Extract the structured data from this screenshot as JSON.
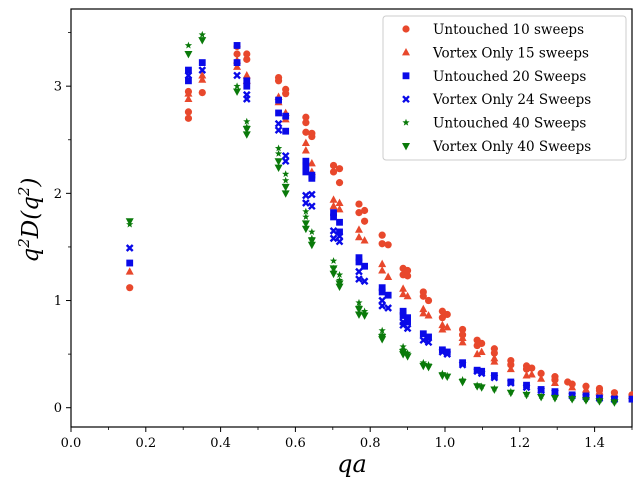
{
  "chart_data": {
    "type": "scatter",
    "title": "",
    "xlabel": "qa",
    "ylabel_parts": {
      "base": "q",
      "sup1": "2",
      "mid": "D(q",
      "sup2": "2",
      "end": ")"
    },
    "xlim": [
      0.0,
      1.5
    ],
    "ylim": [
      -0.18,
      3.72
    ],
    "xticks": [
      0.0,
      0.2,
      0.4,
      0.6,
      0.8,
      1.0,
      1.2,
      1.4
    ],
    "xtick_labels": [
      "0.0",
      "0.2",
      "0.4",
      "0.6",
      "0.8",
      "1.0",
      "1.2",
      "1.4"
    ],
    "yticks": [
      0,
      1,
      2,
      3
    ],
    "ytick_labels": [
      "0",
      "1",
      "2",
      "3"
    ],
    "grid": false,
    "legend_position": "top-right",
    "series": [
      {
        "name": "Untouched 10 sweeps",
        "marker": "circle",
        "color": "#e8482c",
        "points": [
          [
            0.157,
            1.12
          ],
          [
            0.314,
            2.7
          ],
          [
            0.314,
            2.76
          ],
          [
            0.314,
            2.95
          ],
          [
            0.351,
            2.94
          ],
          [
            0.444,
            3.3
          ],
          [
            0.444,
            3.37
          ],
          [
            0.47,
            3.25
          ],
          [
            0.47,
            3.3
          ],
          [
            0.555,
            3.05
          ],
          [
            0.555,
            3.08
          ],
          [
            0.574,
            2.93
          ],
          [
            0.574,
            2.97
          ],
          [
            0.628,
            2.57
          ],
          [
            0.628,
            2.66
          ],
          [
            0.628,
            2.71
          ],
          [
            0.644,
            2.53
          ],
          [
            0.644,
            2.56
          ],
          [
            0.702,
            2.2
          ],
          [
            0.702,
            2.26
          ],
          [
            0.718,
            2.1
          ],
          [
            0.718,
            2.23
          ],
          [
            0.77,
            1.82
          ],
          [
            0.77,
            1.9
          ],
          [
            0.785,
            1.74
          ],
          [
            0.785,
            1.84
          ],
          [
            0.832,
            1.53
          ],
          [
            0.832,
            1.61
          ],
          [
            0.848,
            1.52
          ],
          [
            0.888,
            1.24
          ],
          [
            0.888,
            1.3
          ],
          [
            0.9,
            1.23
          ],
          [
            0.9,
            1.28
          ],
          [
            0.942,
            1.04
          ],
          [
            0.942,
            1.08
          ],
          [
            0.956,
            1.0
          ],
          [
            0.993,
            0.84
          ],
          [
            0.993,
            0.9
          ],
          [
            1.006,
            0.87
          ],
          [
            1.047,
            0.68
          ],
          [
            1.047,
            0.73
          ],
          [
            1.086,
            0.58
          ],
          [
            1.086,
            0.63
          ],
          [
            1.098,
            0.6
          ],
          [
            1.132,
            0.51
          ],
          [
            1.132,
            0.55
          ],
          [
            1.176,
            0.4
          ],
          [
            1.176,
            0.44
          ],
          [
            1.218,
            0.36
          ],
          [
            1.218,
            0.39
          ],
          [
            1.232,
            0.37
          ],
          [
            1.257,
            0.32
          ],
          [
            1.294,
            0.26
          ],
          [
            1.294,
            0.29
          ],
          [
            1.328,
            0.24
          ],
          [
            1.34,
            0.22
          ],
          [
            1.377,
            0.2
          ],
          [
            1.413,
            0.16
          ],
          [
            1.413,
            0.18
          ],
          [
            1.453,
            0.14
          ],
          [
            1.5,
            0.12
          ]
        ]
      },
      {
        "name": "Vortex Only 15 sweeps",
        "marker": "triangle-up",
        "color": "#e8482c",
        "points": [
          [
            0.157,
            1.27
          ],
          [
            0.314,
            2.88
          ],
          [
            0.314,
            2.93
          ],
          [
            0.351,
            3.06
          ],
          [
            0.351,
            3.1
          ],
          [
            0.444,
            3.18
          ],
          [
            0.444,
            3.24
          ],
          [
            0.47,
            3.05
          ],
          [
            0.47,
            3.1
          ],
          [
            0.555,
            2.85
          ],
          [
            0.555,
            2.9
          ],
          [
            0.574,
            2.69
          ],
          [
            0.574,
            2.75
          ],
          [
            0.628,
            2.4
          ],
          [
            0.628,
            2.47
          ],
          [
            0.644,
            2.2
          ],
          [
            0.644,
            2.28
          ],
          [
            0.702,
            1.88
          ],
          [
            0.702,
            1.94
          ],
          [
            0.718,
            1.85
          ],
          [
            0.718,
            1.91
          ],
          [
            0.77,
            1.59
          ],
          [
            0.77,
            1.66
          ],
          [
            0.785,
            1.56
          ],
          [
            0.832,
            1.28
          ],
          [
            0.832,
            1.34
          ],
          [
            0.848,
            1.22
          ],
          [
            0.888,
            1.06
          ],
          [
            0.888,
            1.11
          ],
          [
            0.9,
            1.04
          ],
          [
            0.942,
            0.88
          ],
          [
            0.942,
            0.92
          ],
          [
            0.956,
            0.86
          ],
          [
            0.993,
            0.73
          ],
          [
            0.993,
            0.77
          ],
          [
            1.006,
            0.75
          ],
          [
            1.047,
            0.61
          ],
          [
            1.047,
            0.65
          ],
          [
            1.086,
            0.5
          ],
          [
            1.098,
            0.52
          ],
          [
            1.132,
            0.43
          ],
          [
            1.132,
            0.46
          ],
          [
            1.176,
            0.36
          ],
          [
            1.218,
            0.3
          ],
          [
            1.232,
            0.31
          ],
          [
            1.257,
            0.27
          ],
          [
            1.294,
            0.23
          ],
          [
            1.34,
            0.19
          ],
          [
            1.377,
            0.17
          ],
          [
            1.413,
            0.15
          ],
          [
            1.453,
            0.13
          ],
          [
            1.5,
            0.11
          ]
        ]
      },
      {
        "name": "Untouched 20 Sweeps",
        "marker": "square",
        "color": "#0a0ae8",
        "points": [
          [
            0.157,
            1.35
          ],
          [
            0.314,
            3.05
          ],
          [
            0.314,
            3.15
          ],
          [
            0.351,
            3.22
          ],
          [
            0.444,
            3.22
          ],
          [
            0.444,
            3.38
          ],
          [
            0.47,
            3.0
          ],
          [
            0.47,
            3.05
          ],
          [
            0.555,
            2.75
          ],
          [
            0.555,
            2.87
          ],
          [
            0.574,
            2.58
          ],
          [
            0.574,
            2.72
          ],
          [
            0.628,
            2.2
          ],
          [
            0.628,
            2.26
          ],
          [
            0.628,
            2.3
          ],
          [
            0.644,
            2.14
          ],
          [
            0.644,
            2.17
          ],
          [
            0.702,
            1.78
          ],
          [
            0.702,
            1.82
          ],
          [
            0.718,
            1.73
          ],
          [
            0.718,
            1.64
          ],
          [
            0.77,
            1.4
          ],
          [
            0.77,
            1.36
          ],
          [
            0.785,
            1.32
          ],
          [
            0.832,
            1.08
          ],
          [
            0.832,
            1.12
          ],
          [
            0.848,
            1.05
          ],
          [
            0.888,
            0.86
          ],
          [
            0.888,
            0.9
          ],
          [
            0.9,
            0.8
          ],
          [
            0.9,
            0.84
          ],
          [
            0.942,
            0.69
          ],
          [
            0.956,
            0.66
          ],
          [
            0.993,
            0.54
          ],
          [
            1.006,
            0.52
          ],
          [
            1.047,
            0.42
          ],
          [
            1.086,
            0.35
          ],
          [
            1.098,
            0.34
          ],
          [
            1.132,
            0.3
          ],
          [
            1.176,
            0.24
          ],
          [
            1.218,
            0.21
          ],
          [
            1.257,
            0.17
          ],
          [
            1.294,
            0.15
          ],
          [
            1.34,
            0.12
          ],
          [
            1.377,
            0.11
          ],
          [
            1.413,
            0.09
          ],
          [
            1.453,
            0.08
          ],
          [
            1.5,
            0.08
          ]
        ]
      },
      {
        "name": "Vortex Only 24 Sweeps",
        "marker": "x",
        "color": "#0a0ae8",
        "points": [
          [
            0.157,
            1.49
          ],
          [
            0.314,
            3.1
          ],
          [
            0.351,
            3.15
          ],
          [
            0.444,
            3.1
          ],
          [
            0.47,
            2.88
          ],
          [
            0.47,
            2.92
          ],
          [
            0.555,
            2.59
          ],
          [
            0.555,
            2.65
          ],
          [
            0.574,
            2.3
          ],
          [
            0.574,
            2.35
          ],
          [
            0.628,
            1.91
          ],
          [
            0.628,
            1.98
          ],
          [
            0.644,
            1.88
          ],
          [
            0.644,
            1.99
          ],
          [
            0.702,
            1.58
          ],
          [
            0.702,
            1.65
          ],
          [
            0.718,
            1.55
          ],
          [
            0.718,
            1.6
          ],
          [
            0.77,
            1.2
          ],
          [
            0.77,
            1.27
          ],
          [
            0.785,
            1.18
          ],
          [
            0.832,
            0.95
          ],
          [
            0.832,
            1.0
          ],
          [
            0.848,
            0.93
          ],
          [
            0.888,
            0.77
          ],
          [
            0.888,
            0.8
          ],
          [
            0.9,
            0.74
          ],
          [
            0.942,
            0.63
          ],
          [
            0.956,
            0.61
          ],
          [
            0.993,
            0.52
          ],
          [
            1.006,
            0.5
          ],
          [
            1.047,
            0.4
          ],
          [
            1.086,
            0.34
          ],
          [
            1.098,
            0.32
          ],
          [
            1.132,
            0.28
          ],
          [
            1.176,
            0.23
          ],
          [
            1.218,
            0.19
          ],
          [
            1.257,
            0.16
          ],
          [
            1.294,
            0.14
          ],
          [
            1.34,
            0.11
          ],
          [
            1.377,
            0.1
          ],
          [
            1.413,
            0.09
          ],
          [
            1.453,
            0.08
          ]
        ]
      },
      {
        "name": "Untouched 40 Sweeps",
        "marker": "star",
        "color": "#0a7a0a",
        "points": [
          [
            0.157,
            1.71
          ],
          [
            0.314,
            3.38
          ],
          [
            0.351,
            3.48
          ],
          [
            0.444,
            3.0
          ],
          [
            0.47,
            2.67
          ],
          [
            0.47,
            2.62
          ],
          [
            0.555,
            2.37
          ],
          [
            0.555,
            2.42
          ],
          [
            0.574,
            2.12
          ],
          [
            0.574,
            2.18
          ],
          [
            0.628,
            1.78
          ],
          [
            0.628,
            1.83
          ],
          [
            0.644,
            1.64
          ],
          [
            0.644,
            1.58
          ],
          [
            0.702,
            1.3
          ],
          [
            0.702,
            1.37
          ],
          [
            0.718,
            1.19
          ],
          [
            0.718,
            1.24
          ],
          [
            0.77,
            0.94
          ],
          [
            0.77,
            0.98
          ],
          [
            0.785,
            0.9
          ],
          [
            0.832,
            0.68
          ],
          [
            0.832,
            0.72
          ],
          [
            0.888,
            0.54
          ],
          [
            0.888,
            0.57
          ],
          [
            0.9,
            0.51
          ],
          [
            0.942,
            0.42
          ],
          [
            0.956,
            0.4
          ],
          [
            0.993,
            0.32
          ],
          [
            1.006,
            0.3
          ],
          [
            1.047,
            0.26
          ],
          [
            1.086,
            0.21
          ],
          [
            1.098,
            0.2
          ],
          [
            1.132,
            0.18
          ],
          [
            1.176,
            0.15
          ],
          [
            1.218,
            0.13
          ],
          [
            1.257,
            0.11
          ],
          [
            1.294,
            0.1
          ],
          [
            1.34,
            0.09
          ],
          [
            1.377,
            0.08
          ],
          [
            1.413,
            0.07
          ],
          [
            1.453,
            0.06
          ]
        ]
      },
      {
        "name": "Vortex Only 40 Sweeps",
        "marker": "triangle-down",
        "color": "#0a7a0a",
        "points": [
          [
            0.157,
            1.74
          ],
          [
            0.314,
            3.3
          ],
          [
            0.351,
            3.43
          ],
          [
            0.444,
            2.95
          ],
          [
            0.47,
            2.55
          ],
          [
            0.47,
            2.6
          ],
          [
            0.555,
            2.24
          ],
          [
            0.555,
            2.3
          ],
          [
            0.574,
            2.0
          ],
          [
            0.574,
            2.06
          ],
          [
            0.628,
            1.67
          ],
          [
            0.628,
            1.72
          ],
          [
            0.644,
            1.52
          ],
          [
            0.644,
            1.56
          ],
          [
            0.702,
            1.25
          ],
          [
            0.702,
            1.3
          ],
          [
            0.718,
            1.13
          ],
          [
            0.718,
            1.16
          ],
          [
            0.77,
            0.87
          ],
          [
            0.77,
            0.92
          ],
          [
            0.785,
            0.86
          ],
          [
            0.832,
            0.64
          ],
          [
            0.832,
            0.66
          ],
          [
            0.888,
            0.5
          ],
          [
            0.888,
            0.52
          ],
          [
            0.9,
            0.48
          ],
          [
            0.942,
            0.39
          ],
          [
            0.956,
            0.38
          ],
          [
            0.993,
            0.3
          ],
          [
            1.006,
            0.29
          ],
          [
            1.047,
            0.24
          ],
          [
            1.086,
            0.2
          ],
          [
            1.098,
            0.19
          ],
          [
            1.132,
            0.17
          ],
          [
            1.176,
            0.14
          ],
          [
            1.218,
            0.12
          ],
          [
            1.257,
            0.1
          ],
          [
            1.294,
            0.09
          ],
          [
            1.34,
            0.08
          ],
          [
            1.377,
            0.07
          ],
          [
            1.413,
            0.06
          ],
          [
            1.453,
            0.05
          ]
        ]
      }
    ]
  }
}
